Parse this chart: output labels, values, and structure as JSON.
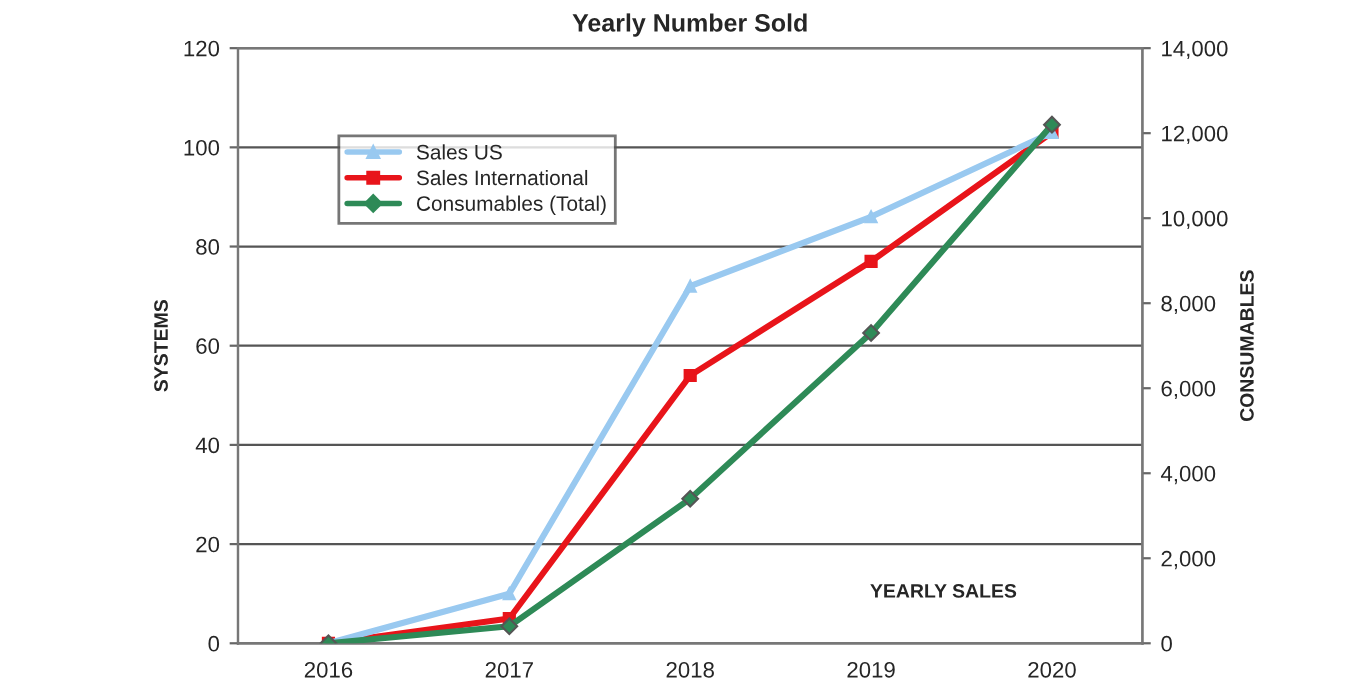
{
  "chart_data": {
    "type": "line",
    "title": "Yearly Number Sold",
    "xlabel": "YEARLY SALES",
    "ylabel": "SYSTEMS",
    "y2label": "CONSUMABLES",
    "categories": [
      "2016",
      "2017",
      "2018",
      "2019",
      "2020"
    ],
    "series": [
      {
        "name": "Sales US",
        "color": "#99c9f0",
        "marker": "triangle",
        "values": [
          0,
          10,
          72,
          86,
          103
        ]
      },
      {
        "name": "Sales International",
        "color": "#e8141a",
        "marker": "square",
        "values": [
          0,
          5,
          54,
          77,
          103
        ]
      },
      {
        "name": "Consumables (Total)",
        "color": "#2e8a57",
        "marker": "diamond",
        "axis": "y2",
        "values": [
          0,
          400,
          3400,
          7300,
          12200
        ]
      }
    ],
    "ylim": [
      0,
      120
    ],
    "yticks": [
      0,
      20,
      40,
      60,
      80,
      100,
      120
    ],
    "y2lim": [
      0,
      14000
    ],
    "y2ticks": [
      {
        "value": 0,
        "label": "0"
      },
      {
        "value": 2000,
        "label": "2,000"
      },
      {
        "value": 4000,
        "label": "4,000"
      },
      {
        "value": 6000,
        "label": "6,000"
      },
      {
        "value": 8000,
        "label": "8,000"
      },
      {
        "value": 10000,
        "label": "10,000"
      },
      {
        "value": 12000,
        "label": "12,000"
      },
      {
        "value": 14000,
        "label": "14,000"
      }
    ],
    "grid": "y",
    "legend": "top left"
  }
}
